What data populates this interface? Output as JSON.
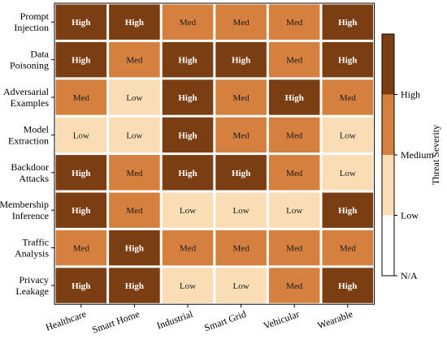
{
  "chart_data": {
    "type": "heatmap",
    "rows": [
      "Prompt Injection",
      "Data Poisoning",
      "Adversarial Examples",
      "Model Extraction",
      "Backdoor Attacks",
      "Membership Inference",
      "Traffic Analysis",
      "Privacy Leakage"
    ],
    "columns": [
      "Healthcare",
      "Smart Home",
      "Industrial",
      "Smart Grid",
      "Vehicular",
      "Wearable"
    ],
    "values": [
      [
        "High",
        "High",
        "Med",
        "Med",
        "Med",
        "High"
      ],
      [
        "High",
        "Med",
        "High",
        "High",
        "Med",
        "High"
      ],
      [
        "Med",
        "Low",
        "High",
        "Med",
        "High",
        "Med"
      ],
      [
        "Low",
        "Low",
        "High",
        "Med",
        "Med",
        "Low"
      ],
      [
        "High",
        "Med",
        "High",
        "High",
        "Med",
        "Low"
      ],
      [
        "High",
        "Med",
        "Low",
        "Low",
        "Low",
        "High"
      ],
      [
        "Med",
        "High",
        "Med",
        "Med",
        "Med",
        "Med"
      ],
      [
        "High",
        "High",
        "Low",
        "Low",
        "Med",
        "High"
      ]
    ],
    "colors": {
      "High": "#7b3d12",
      "Med": "#d5803f",
      "Low": "#fadcb5",
      "N/A": "#ffffff"
    },
    "text_colors": {
      "High": "#ffffff",
      "Med": "#1a1a1a",
      "Low": "#1a1a1a"
    },
    "colorbar": {
      "label": "Threat Severity",
      "levels": [
        "N/A",
        "Low",
        "Medium",
        "High"
      ],
      "colors": [
        "#ffffff",
        "#fadcb5",
        "#d5803f",
        "#7b3d12"
      ]
    }
  }
}
